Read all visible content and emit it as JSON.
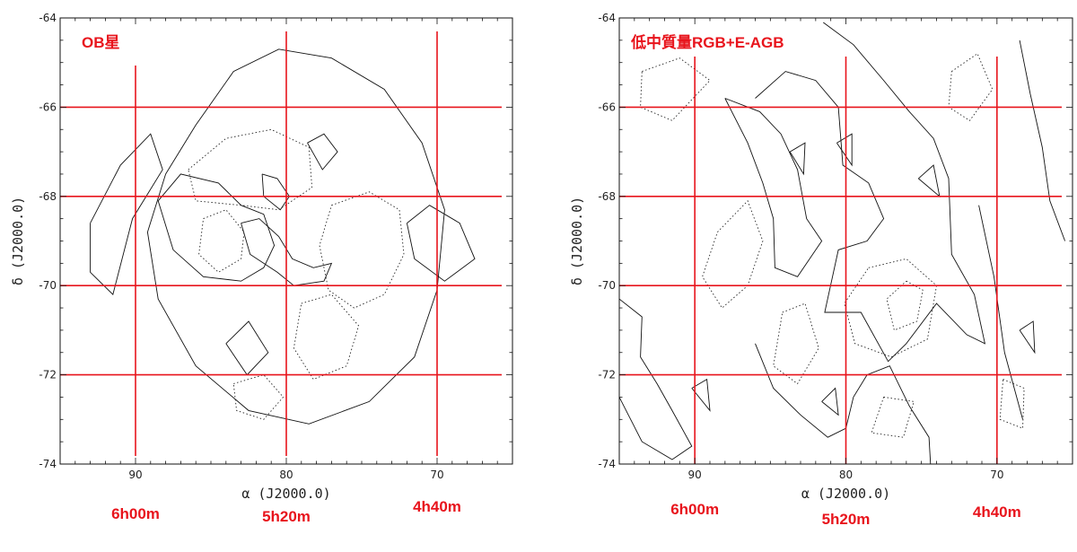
{
  "chart_data": [
    {
      "type": "contour",
      "title": "OB星",
      "xlabel": "α (J2000.0)",
      "ylabel": "δ (J2000.0)",
      "xlim": [
        95,
        65
      ],
      "ylim": [
        -74,
        -64
      ],
      "x_ticks": [
        90,
        80,
        70
      ],
      "y_ticks": [
        -64,
        -66,
        -68,
        -70,
        -72,
        -74
      ],
      "grid_lines": {
        "ra_deg": [
          90,
          80,
          70
        ],
        "dec_deg": [
          -66,
          -68,
          -70,
          -72
        ]
      },
      "ra_labels": [
        "6h00m",
        "5h20m",
        "4h40m"
      ],
      "contours": {
        "solid": [
          [
            [
              88,
              -67.5
            ],
            [
              86,
              -66.4
            ],
            [
              83.5,
              -65.2
            ],
            [
              80.5,
              -64.7
            ],
            [
              77,
              -64.9
            ],
            [
              73.5,
              -65.6
            ],
            [
              71,
              -66.8
            ],
            [
              69.5,
              -68.3
            ],
            [
              70,
              -70.1
            ],
            [
              71.5,
              -71.6
            ],
            [
              74.5,
              -72.6
            ],
            [
              78.5,
              -73.1
            ],
            [
              82.5,
              -72.8
            ],
            [
              86,
              -71.8
            ],
            [
              88.5,
              -70.3
            ],
            [
              89.2,
              -68.8
            ],
            [
              88,
              -67.5
            ]
          ],
          [
            [
              93,
              -68.6
            ],
            [
              91,
              -67.3
            ],
            [
              89,
              -66.6
            ],
            [
              88.2,
              -67.4
            ],
            [
              90.2,
              -68.5
            ],
            [
              91.5,
              -70.2
            ],
            [
              93,
              -69.7
            ],
            [
              93,
              -68.6
            ]
          ],
          [
            [
              88.5,
              -68.1
            ],
            [
              87,
              -67.5
            ],
            [
              84.5,
              -67.7
            ],
            [
              83,
              -68.2
            ],
            [
              81.5,
              -68.4
            ],
            [
              80.8,
              -69.1
            ],
            [
              81.5,
              -69.6
            ],
            [
              83,
              -69.9
            ],
            [
              85.5,
              -69.8
            ],
            [
              87.5,
              -69.2
            ],
            [
              88.5,
              -68.1
            ]
          ],
          [
            [
              83,
              -68.6
            ],
            [
              81.8,
              -68.5
            ],
            [
              80.5,
              -68.9
            ],
            [
              79.6,
              -69.4
            ],
            [
              78.2,
              -69.6
            ],
            [
              77,
              -69.5
            ],
            [
              77.5,
              -69.9
            ],
            [
              79.5,
              -70.0
            ],
            [
              80.6,
              -69.7
            ],
            [
              82.4,
              -69.3
            ],
            [
              83,
              -68.6
            ]
          ],
          [
            [
              81.6,
              -67.5
            ],
            [
              80.6,
              -67.6
            ],
            [
              79.8,
              -68.0
            ],
            [
              80.4,
              -68.3
            ],
            [
              81.5,
              -68.0
            ],
            [
              81.6,
              -67.5
            ]
          ],
          [
            [
              78.6,
              -66.8
            ],
            [
              77.5,
              -66.6
            ],
            [
              76.6,
              -67.0
            ],
            [
              77.6,
              -67.4
            ],
            [
              78.6,
              -66.8
            ]
          ],
          [
            [
              72,
              -68.6
            ],
            [
              70.5,
              -68.2
            ],
            [
              68.5,
              -68.6
            ],
            [
              67.5,
              -69.4
            ],
            [
              69.5,
              -69.9
            ],
            [
              71.5,
              -69.4
            ],
            [
              72,
              -68.6
            ]
          ],
          [
            [
              84,
              -71.3
            ],
            [
              82.5,
              -70.8
            ],
            [
              81.2,
              -71.5
            ],
            [
              82.6,
              -72.0
            ],
            [
              84,
              -71.3
            ]
          ]
        ],
        "dotted": [
          [
            [
              86.5,
              -67.4
            ],
            [
              84,
              -66.7
            ],
            [
              81,
              -66.5
            ],
            [
              78.5,
              -66.9
            ],
            [
              78.3,
              -67.8
            ],
            [
              80.5,
              -68.3
            ],
            [
              83,
              -68.2
            ],
            [
              86,
              -68.1
            ],
            [
              86.5,
              -67.4
            ]
          ],
          [
            [
              85.5,
              -68.5
            ],
            [
              84,
              -68.3
            ],
            [
              82.8,
              -68.8
            ],
            [
              83,
              -69.4
            ],
            [
              84.5,
              -69.7
            ],
            [
              85.8,
              -69.3
            ],
            [
              85.5,
              -68.5
            ]
          ],
          [
            [
              77,
              -68.2
            ],
            [
              74.5,
              -67.9
            ],
            [
              72.5,
              -68.3
            ],
            [
              72.2,
              -69.3
            ],
            [
              73.5,
              -70.2
            ],
            [
              75.5,
              -70.5
            ],
            [
              77.2,
              -70.1
            ],
            [
              77.8,
              -69.1
            ],
            [
              77,
              -68.2
            ]
          ],
          [
            [
              79,
              -70.4
            ],
            [
              77,
              -70.2
            ],
            [
              75.2,
              -70.9
            ],
            [
              76,
              -71.8
            ],
            [
              78.2,
              -72.1
            ],
            [
              79.5,
              -71.4
            ],
            [
              79,
              -70.4
            ]
          ],
          [
            [
              83.5,
              -72.2
            ],
            [
              81.5,
              -72.0
            ],
            [
              80.2,
              -72.5
            ],
            [
              81.5,
              -73.0
            ],
            [
              83.3,
              -72.8
            ],
            [
              83.5,
              -72.2
            ]
          ]
        ]
      }
    },
    {
      "type": "contour",
      "title": "低中質量RGB+E-AGB",
      "xlabel": "α (J2000.0)",
      "ylabel": "δ (J2000.0)",
      "xlim": [
        95,
        65
      ],
      "ylim": [
        -74,
        -64
      ],
      "x_ticks": [
        90,
        80,
        70
      ],
      "y_ticks": [
        -64,
        -66,
        -68,
        -70,
        -72,
        -74
      ],
      "grid_lines": {
        "ra_deg": [
          90,
          80,
          70
        ],
        "dec_deg": [
          -66,
          -68,
          -70,
          -72
        ]
      },
      "ra_labels": [
        "6h00m",
        "5h20m",
        "4h40m"
      ],
      "contours": {
        "solid": [
          [
            [
              86,
              -65.8
            ],
            [
              84,
              -65.2
            ],
            [
              82,
              -65.4
            ],
            [
              80.5,
              -66.0
            ],
            [
              80.2,
              -67.3
            ],
            [
              78.5,
              -67.7
            ],
            [
              77.5,
              -68.5
            ],
            [
              78.6,
              -69.0
            ],
            [
              80.5,
              -69.2
            ],
            [
              81.4,
              -70.6
            ],
            [
              79,
              -70.6
            ],
            [
              77.2,
              -71.7
            ],
            [
              76,
              -71.3
            ],
            [
              74,
              -70.4
            ],
            [
              72,
              -71.1
            ],
            [
              70.8,
              -71.3
            ],
            [
              71.5,
              -70.2
            ],
            [
              73,
              -69.3
            ],
            [
              73.2,
              -67.6
            ],
            [
              74.2,
              -66.7
            ],
            [
              75.8,
              -66.1
            ],
            [
              77.5,
              -65.4
            ],
            [
              79.5,
              -64.6
            ],
            [
              81.5,
              -64.1
            ]
          ],
          [
            [
              88,
              -65.8
            ],
            [
              86.5,
              -66.8
            ],
            [
              85.5,
              -67.7
            ],
            [
              84.8,
              -68.5
            ],
            [
              84.7,
              -69.6
            ],
            [
              83.2,
              -69.8
            ],
            [
              82.2,
              -69.3
            ],
            [
              81.6,
              -69.0
            ],
            [
              82.6,
              -68.5
            ],
            [
              83.2,
              -67.4
            ],
            [
              84.3,
              -66.6
            ],
            [
              85.7,
              -66.1
            ],
            [
              88,
              -65.8
            ]
          ],
          [
            [
              95,
              -70.3
            ],
            [
              93.5,
              -70.7
            ],
            [
              93.6,
              -71.6
            ],
            [
              92.5,
              -72.2
            ],
            [
              91.5,
              -72.8
            ],
            [
              90.2,
              -73.6
            ],
            [
              91.5,
              -73.9
            ],
            [
              93.5,
              -73.5
            ],
            [
              95,
              -72.5
            ]
          ],
          [
            [
              86,
              -71.3
            ],
            [
              84.8,
              -72.3
            ],
            [
              83,
              -72.9
            ],
            [
              81.2,
              -73.4
            ],
            [
              80,
              -73.2
            ],
            [
              79.5,
              -72.5
            ],
            [
              78.6,
              -72.0
            ],
            [
              77.1,
              -71.8
            ],
            [
              75.8,
              -72.7
            ],
            [
              74.5,
              -73.4
            ],
            [
              74.4,
              -74.0
            ]
          ],
          [
            [
              68.5,
              -64.5
            ],
            [
              67.8,
              -65.7
            ],
            [
              67,
              -66.9
            ],
            [
              66.5,
              -68.1
            ],
            [
              65.5,
              -69.0
            ]
          ],
          [
            [
              71.2,
              -68.2
            ],
            [
              70.2,
              -69.8
            ],
            [
              69.5,
              -71.5
            ],
            [
              68.3,
              -73.0
            ]
          ],
          [
            [
              83.7,
              -67.0
            ],
            [
              82.7,
              -66.8
            ],
            [
              82.8,
              -67.5
            ],
            [
              83.7,
              -67.0
            ]
          ],
          [
            [
              80.6,
              -66.8
            ],
            [
              79.6,
              -66.6
            ],
            [
              79.6,
              -67.3
            ],
            [
              80.6,
              -66.8
            ]
          ],
          [
            [
              75.2,
              -67.6
            ],
            [
              74.2,
              -67.3
            ],
            [
              73.8,
              -68.0
            ],
            [
              75.2,
              -67.6
            ]
          ],
          [
            [
              81.6,
              -72.6
            ],
            [
              80.7,
              -72.3
            ],
            [
              80.5,
              -72.9
            ],
            [
              81.6,
              -72.6
            ]
          ],
          [
            [
              90.2,
              -72.3
            ],
            [
              89.2,
              -72.1
            ],
            [
              89.0,
              -72.8
            ],
            [
              90.2,
              -72.3
            ]
          ],
          [
            [
              68.5,
              -71.0
            ],
            [
              67.6,
              -70.8
            ],
            [
              67.5,
              -71.5
            ],
            [
              68.5,
              -71.0
            ]
          ]
        ],
        "dotted": [
          [
            [
              93.5,
              -65.2
            ],
            [
              91,
              -64.9
            ],
            [
              89,
              -65.4
            ],
            [
              91.5,
              -66.3
            ],
            [
              93.6,
              -66.0
            ],
            [
              93.5,
              -65.2
            ]
          ],
          [
            [
              88.5,
              -68.8
            ],
            [
              86.5,
              -68.1
            ],
            [
              85.5,
              -69.0
            ],
            [
              86.5,
              -70.0
            ],
            [
              88.2,
              -70.5
            ],
            [
              89.5,
              -69.8
            ],
            [
              88.5,
              -68.8
            ]
          ],
          [
            [
              78.5,
              -69.6
            ],
            [
              76,
              -69.4
            ],
            [
              74,
              -70.0
            ],
            [
              74.6,
              -71.2
            ],
            [
              77,
              -71.6
            ],
            [
              79.4,
              -71.3
            ],
            [
              80.1,
              -70.4
            ],
            [
              78.5,
              -69.6
            ]
          ],
          [
            [
              76,
              -69.9
            ],
            [
              74.9,
              -70.1
            ],
            [
              75.3,
              -70.8
            ],
            [
              76.8,
              -71.0
            ],
            [
              77.3,
              -70.3
            ],
            [
              76,
              -69.9
            ]
          ],
          [
            [
              84.2,
              -70.6
            ],
            [
              82.7,
              -70.4
            ],
            [
              81.8,
              -71.4
            ],
            [
              83.2,
              -72.2
            ],
            [
              84.8,
              -71.8
            ],
            [
              84.2,
              -70.6
            ]
          ],
          [
            [
              77.5,
              -72.5
            ],
            [
              75.5,
              -72.6
            ],
            [
              76.2,
              -73.4
            ],
            [
              78.3,
              -73.3
            ],
            [
              77.5,
              -72.5
            ]
          ],
          [
            [
              73,
              -65.2
            ],
            [
              71.3,
              -64.8
            ],
            [
              70.3,
              -65.6
            ],
            [
              71.8,
              -66.3
            ],
            [
              73.2,
              -66.0
            ],
            [
              73,
              -65.2
            ]
          ],
          [
            [
              69.6,
              -72.1
            ],
            [
              68.2,
              -72.3
            ],
            [
              68.3,
              -73.2
            ],
            [
              69.8,
              -73.0
            ],
            [
              69.6,
              -72.1
            ]
          ]
        ]
      }
    }
  ]
}
